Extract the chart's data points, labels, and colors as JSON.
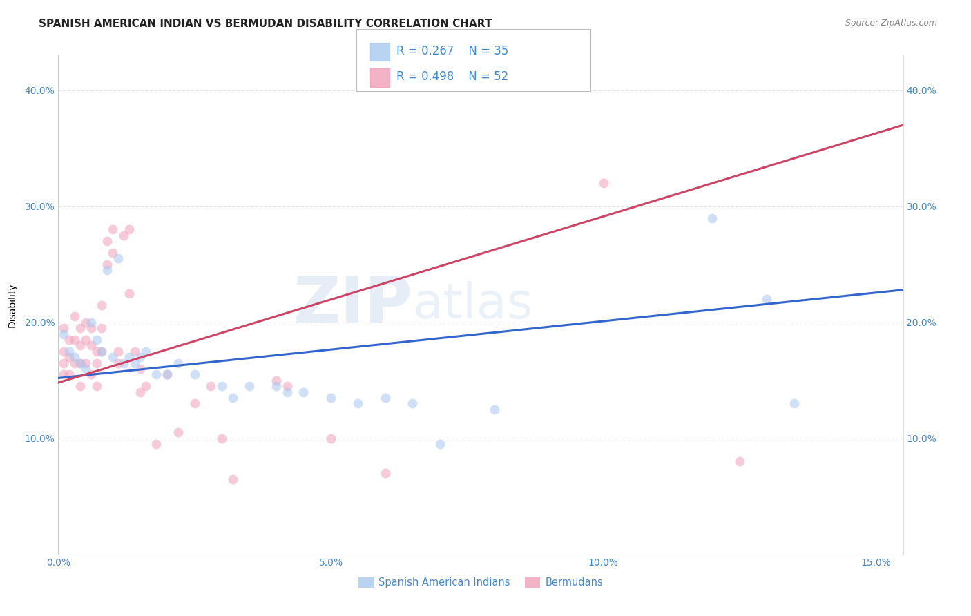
{
  "title": "SPANISH AMERICAN INDIAN VS BERMUDAN DISABILITY CORRELATION CHART",
  "source": "Source: ZipAtlas.com",
  "ylabel_label": "Disability",
  "xlim": [
    0.0,
    0.155
  ],
  "ylim": [
    0.0,
    0.43
  ],
  "xticks": [
    0.0,
    0.05,
    0.1,
    0.15
  ],
  "xtick_labels": [
    "0.0%",
    "5.0%",
    "10.0%",
    "15.0%"
  ],
  "yticks": [
    0.1,
    0.2,
    0.3,
    0.4
  ],
  "ytick_labels": [
    "10.0%",
    "20.0%",
    "30.0%",
    "40.0%"
  ],
  "blue_color": "#A8C8F0",
  "pink_color": "#F0A0B8",
  "blue_line_color": "#3366CC",
  "pink_line_color": "#CC4466",
  "watermark_zip": "ZIP",
  "watermark_atlas": "atlas",
  "legend_r_blue": "R = 0.267",
  "legend_n_blue": "N = 35",
  "legend_r_pink": "R = 0.498",
  "legend_n_pink": "N = 52",
  "legend_label_blue": "Spanish American Indians",
  "legend_label_pink": "Bermudans",
  "blue_scatter_x": [
    0.001,
    0.002,
    0.003,
    0.004,
    0.005,
    0.006,
    0.007,
    0.008,
    0.009,
    0.01,
    0.011,
    0.012,
    0.013,
    0.014,
    0.015,
    0.016,
    0.018,
    0.02,
    0.022,
    0.025,
    0.03,
    0.032,
    0.035,
    0.04,
    0.042,
    0.045,
    0.05,
    0.055,
    0.06,
    0.065,
    0.07,
    0.08,
    0.12,
    0.13,
    0.135
  ],
  "blue_scatter_y": [
    0.19,
    0.175,
    0.17,
    0.165,
    0.16,
    0.2,
    0.185,
    0.175,
    0.245,
    0.17,
    0.255,
    0.165,
    0.17,
    0.165,
    0.17,
    0.175,
    0.155,
    0.155,
    0.165,
    0.155,
    0.145,
    0.135,
    0.145,
    0.145,
    0.14,
    0.14,
    0.135,
    0.13,
    0.135,
    0.13,
    0.095,
    0.125,
    0.29,
    0.22,
    0.13
  ],
  "pink_scatter_x": [
    0.001,
    0.001,
    0.001,
    0.001,
    0.002,
    0.002,
    0.002,
    0.003,
    0.003,
    0.003,
    0.004,
    0.004,
    0.004,
    0.004,
    0.005,
    0.005,
    0.005,
    0.006,
    0.006,
    0.006,
    0.007,
    0.007,
    0.007,
    0.008,
    0.008,
    0.008,
    0.009,
    0.009,
    0.01,
    0.01,
    0.011,
    0.011,
    0.012,
    0.013,
    0.013,
    0.014,
    0.015,
    0.015,
    0.016,
    0.018,
    0.02,
    0.022,
    0.025,
    0.028,
    0.03,
    0.032,
    0.04,
    0.042,
    0.05,
    0.06,
    0.1,
    0.125
  ],
  "pink_scatter_y": [
    0.195,
    0.175,
    0.165,
    0.155,
    0.185,
    0.17,
    0.155,
    0.205,
    0.185,
    0.165,
    0.195,
    0.18,
    0.165,
    0.145,
    0.2,
    0.185,
    0.165,
    0.195,
    0.18,
    0.155,
    0.175,
    0.165,
    0.145,
    0.215,
    0.195,
    0.175,
    0.27,
    0.25,
    0.28,
    0.26,
    0.175,
    0.165,
    0.275,
    0.28,
    0.225,
    0.175,
    0.16,
    0.14,
    0.145,
    0.095,
    0.155,
    0.105,
    0.13,
    0.145,
    0.1,
    0.065,
    0.15,
    0.145,
    0.1,
    0.07,
    0.32,
    0.08
  ],
  "blue_trendline_x": [
    0.0,
    0.155
  ],
  "blue_trendline_y": [
    0.152,
    0.228
  ],
  "pink_trendline_x": [
    0.0,
    0.155
  ],
  "pink_trendline_y": [
    0.148,
    0.37
  ],
  "background_color": "#FFFFFF",
  "grid_color": "#DDDDDD",
  "title_fontsize": 11,
  "axis_label_fontsize": 10,
  "tick_fontsize": 10,
  "tick_color": "#4488CC",
  "marker_size": 100
}
